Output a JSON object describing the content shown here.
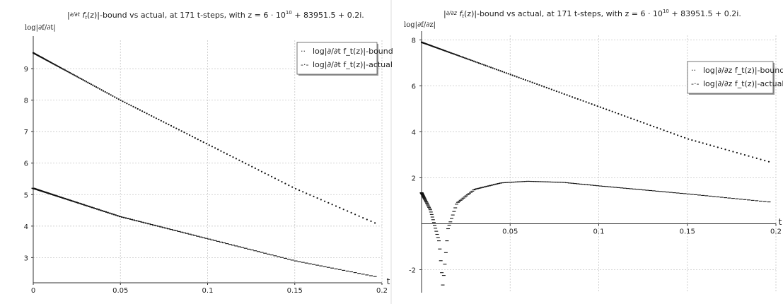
{
  "chart_data": [
    {
      "type": "scatter",
      "title_pre": "|",
      "title_frac": "∂/∂t",
      "title_mid": " f",
      "title_sub": "t",
      "title_post": "(z)|-bound vs actual, at 171 t-steps, with z = 6 · 10",
      "title_exp": "10",
      "title_tail": " + 83951.5 + 0.2i.",
      "ylabel": "log|∂f/∂t|",
      "xlabel": "t",
      "xlim": [
        0,
        0.2
      ],
      "ylim": [
        2.2,
        9.9
      ],
      "xticks": [
        "0",
        "0.05",
        "0.1",
        "0.15",
        "0.2"
      ],
      "xtick_values": [
        0,
        0.05,
        0.1,
        0.15,
        0.2
      ],
      "yticks": [
        "3",
        "4",
        "5",
        "6",
        "7",
        "8",
        "9"
      ],
      "ytick_values": [
        3,
        4,
        5,
        6,
        7,
        8,
        9
      ],
      "grid": true,
      "legend_position": "top-right",
      "series": [
        {
          "name": "log|∂/∂t f_t(z)|-bound",
          "legend_marker": "··",
          "marker": "dot",
          "endpoints": [
            [
              0,
              9.5
            ],
            [
              0.05,
              8.0
            ],
            [
              0.1,
              6.6
            ],
            [
              0.15,
              5.2
            ],
            [
              0.196,
              4.1
            ]
          ]
        },
        {
          "name": "log|∂/∂t f_t(z)|-actual",
          "legend_marker": "-·-",
          "marker": "dash",
          "endpoints": [
            [
              0,
              5.2
            ],
            [
              0.05,
              4.3
            ],
            [
              0.1,
              3.6
            ],
            [
              0.15,
              2.9
            ],
            [
              0.196,
              2.4
            ]
          ]
        }
      ]
    },
    {
      "type": "scatter",
      "title_pre": "|",
      "title_frac": "∂/∂z",
      "title_mid": " f",
      "title_sub": "t",
      "title_post": "(z)|-bound vs actual, at 171 t-steps, with z = 6 · 10",
      "title_exp": "10",
      "title_tail": " + 83951.5 + 0.2i.",
      "ylabel": "log|∂f/∂z|",
      "xlabel": "t",
      "xlim": [
        0,
        0.2
      ],
      "ylim": [
        -3,
        8.2
      ],
      "xticks": [
        "0.05",
        "0.1",
        "0.15",
        "0.2"
      ],
      "xtick_values": [
        0.05,
        0.1,
        0.15,
        0.2
      ],
      "yticks": [
        "-2",
        "2",
        "4",
        "6",
        "8"
      ],
      "ytick_values": [
        -2,
        2,
        4,
        6,
        8
      ],
      "grid": true,
      "legend_position": "top-right",
      "series": [
        {
          "name": "log|∂/∂z f_t(z)|-bound",
          "legend_marker": "··",
          "marker": "dot",
          "endpoints": [
            [
              0,
              7.9
            ],
            [
              0.05,
              6.5
            ],
            [
              0.1,
              5.1
            ],
            [
              0.15,
              3.7
            ],
            [
              0.196,
              2.7
            ]
          ]
        },
        {
          "name": "log|∂/∂z f_t(z)|-actual",
          "legend_marker": "-·-",
          "marker": "dash",
          "endpoints": [
            [
              0,
              1.35
            ],
            [
              0.005,
              0.6
            ],
            [
              0.01,
              -0.8
            ],
            [
              0.012,
              -2.7
            ],
            [
              0.015,
              -0.2
            ],
            [
              0.02,
              0.9
            ],
            [
              0.03,
              1.5
            ],
            [
              0.045,
              1.78
            ],
            [
              0.06,
              1.85
            ],
            [
              0.08,
              1.8
            ],
            [
              0.1,
              1.65
            ],
            [
              0.15,
              1.3
            ],
            [
              0.196,
              0.95
            ]
          ]
        }
      ]
    }
  ]
}
